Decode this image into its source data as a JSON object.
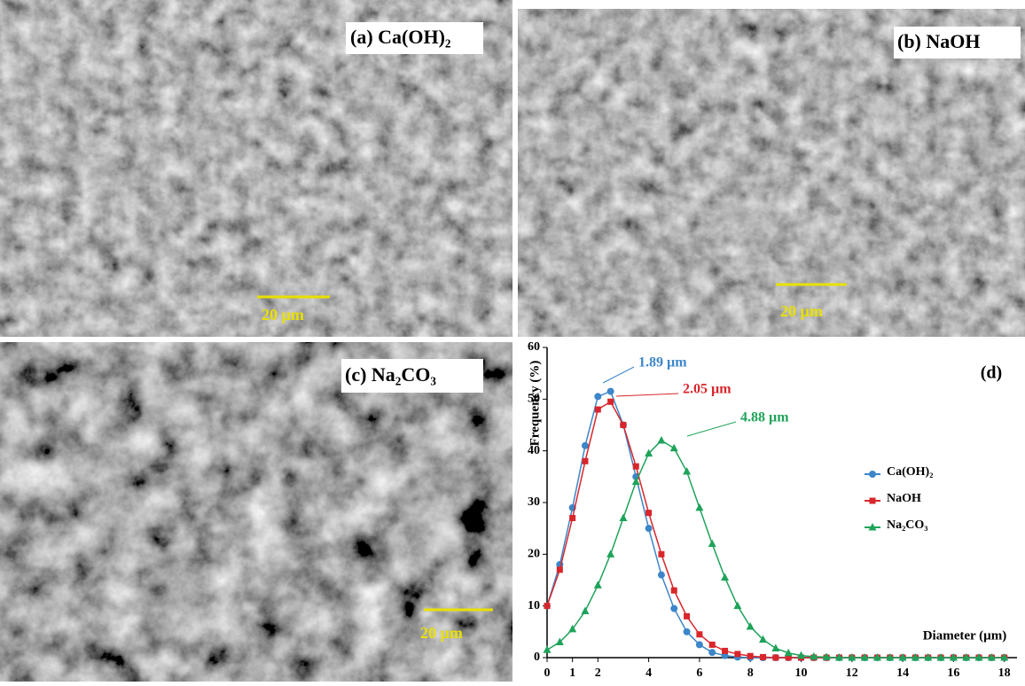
{
  "panels": [
    {
      "label": "(a) Ca(OH)₂",
      "scale_bar": "20 µm"
    },
    {
      "label": "(b) NaOH",
      "scale_bar": "20 µm"
    },
    {
      "label": "(c) Na₂CO₃",
      "scale_bar": "20 µm"
    }
  ],
  "chart_data": {
    "type": "line",
    "panel_label": "(d)",
    "xlabel": "Diameter (µm)",
    "ylabel": "Frequency (%)",
    "annotations": [
      "1.89 µm",
      "2.05 µm",
      "4.88 µm"
    ],
    "x": [
      0,
      0.5,
      1,
      1.5,
      2,
      2.5,
      3,
      3.5,
      4,
      4.5,
      5,
      5.5,
      6,
      6.5,
      7,
      7.5,
      8,
      8.5,
      9,
      9.5,
      10,
      10.5,
      11,
      11.5,
      12,
      12.5,
      13,
      13.5,
      14,
      14.5,
      15,
      15.5,
      16,
      16.5,
      17,
      17.5,
      18
    ],
    "series": [
      {
        "name": "Ca(OH)₂",
        "color": "#3d86c9",
        "marker": "circle",
        "values": [
          10,
          18,
          29,
          41,
          50.5,
          51.5,
          45,
          35,
          25,
          16,
          9.5,
          5,
          2.5,
          1,
          0.4,
          0.1,
          0,
          0,
          0,
          0,
          0,
          0,
          0,
          0,
          0,
          0,
          0,
          0,
          0,
          0,
          0,
          0,
          0,
          0,
          0,
          0,
          0
        ]
      },
      {
        "name": "NaOH",
        "color": "#d8262b",
        "marker": "square",
        "values": [
          10,
          17,
          27,
          38,
          48,
          49.5,
          45,
          37,
          28,
          20,
          13,
          8,
          4.5,
          2.5,
          1.3,
          0.7,
          0.3,
          0.1,
          0,
          0,
          0,
          0,
          0,
          0,
          0,
          0,
          0,
          0,
          0,
          0,
          0,
          0,
          0,
          0,
          0,
          0,
          0
        ]
      },
      {
        "name": "Na₂CO₃",
        "color": "#1fa35a",
        "marker": "triangle",
        "values": [
          1.5,
          3,
          5.5,
          9,
          14,
          20,
          27,
          34,
          39.5,
          42,
          40.5,
          36,
          29,
          22,
          15.5,
          10,
          6,
          3.5,
          1.8,
          0.9,
          0.4,
          0.2,
          0.1,
          0,
          0,
          0,
          0,
          0,
          0,
          0,
          0,
          0,
          0,
          0,
          0,
          0,
          0
        ]
      }
    ],
    "xlim": [
      0,
      18.5
    ],
    "ylim": [
      0,
      60
    ],
    "xticks": [
      0,
      1,
      2,
      4,
      6,
      8,
      10,
      12,
      14,
      16,
      18
    ],
    "yticks": [
      0,
      10,
      20,
      30,
      40,
      50,
      60
    ]
  }
}
